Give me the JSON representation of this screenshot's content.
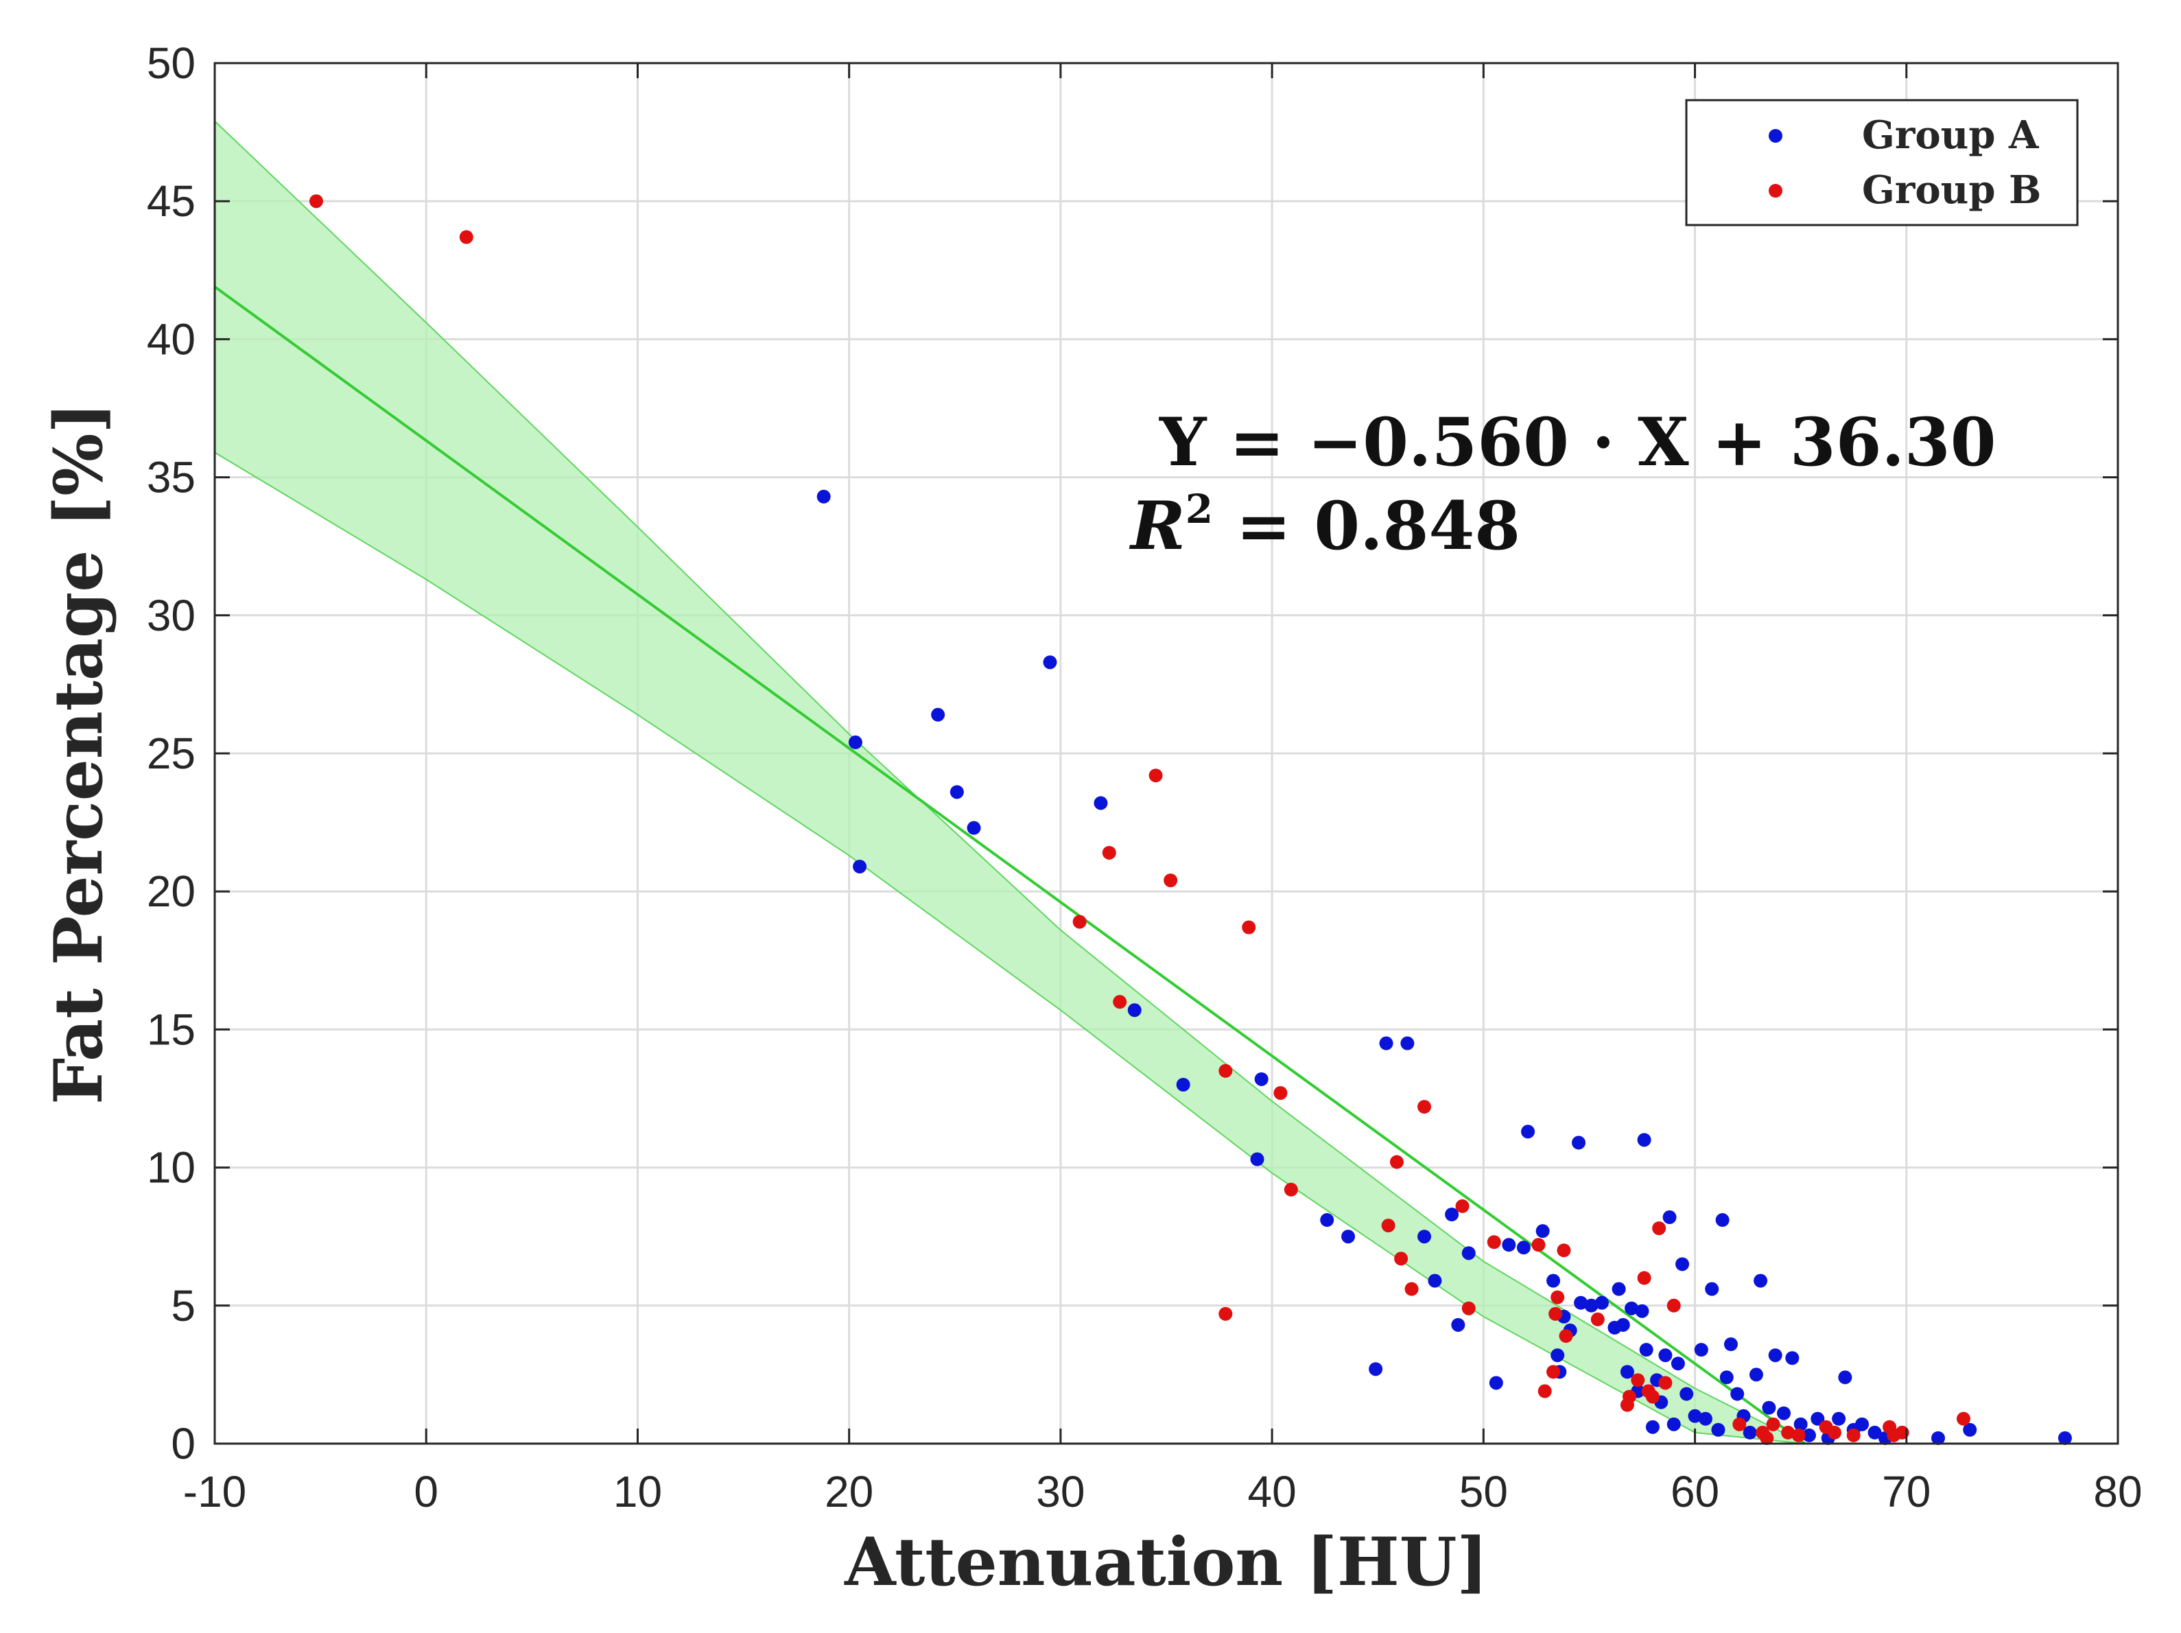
{
  "chart_data": {
    "type": "scatter",
    "title": "",
    "xlabel": "Attenuation [HU]",
    "ylabel": "Fat Percentage [%]",
    "xlim": [
      -10,
      80
    ],
    "ylim": [
      0,
      50
    ],
    "x_ticks": [
      "-10",
      "0",
      "10",
      "20",
      "30",
      "40",
      "50",
      "60",
      "70",
      "80"
    ],
    "y_ticks": [
      "0",
      "5",
      "10",
      "15",
      "20",
      "25",
      "30",
      "35",
      "40",
      "45",
      "50"
    ],
    "grid": true,
    "legend_position": "top-right",
    "colors": {
      "group_a": "#0a14d8",
      "group_b": "#e01010",
      "fit": "#33cc33",
      "band": "#b4f0b4"
    },
    "equation": {
      "line1": "Y = −0.560 · X + 36.30",
      "r2_prefix": "R",
      "r2_sup": "2",
      "r2_rest": " = 0.848"
    },
    "fit": {
      "slope": -0.56,
      "intercept": 36.3,
      "x_range": [
        -10,
        65.2
      ]
    },
    "band": {
      "upper": [
        [
          -10,
          47.9
        ],
        [
          0,
          40.6
        ],
        [
          10,
          33.2
        ],
        [
          20,
          25.7
        ],
        [
          30,
          18.6
        ],
        [
          40,
          12.4
        ],
        [
          50,
          6.6
        ],
        [
          60,
          2.0
        ],
        [
          65.2,
          0
        ]
      ],
      "lower": [
        [
          -10,
          35.9
        ],
        [
          0,
          31.3
        ],
        [
          10,
          26.4
        ],
        [
          20,
          21.3
        ],
        [
          30,
          15.7
        ],
        [
          40,
          9.8
        ],
        [
          50,
          4.6
        ],
        [
          60,
          0.4
        ],
        [
          65.2,
          0
        ]
      ]
    },
    "series": [
      {
        "name": "Group A",
        "points": [
          [
            18.8,
            34.3
          ],
          [
            20.3,
            25.4
          ],
          [
            20.5,
            20.9
          ],
          [
            24.2,
            26.4
          ],
          [
            25.1,
            23.6
          ],
          [
            25.9,
            22.3
          ],
          [
            29.5,
            28.3
          ],
          [
            31.9,
            23.2
          ],
          [
            33.5,
            15.7
          ],
          [
            35.8,
            13.0
          ],
          [
            39.3,
            10.3
          ],
          [
            39.5,
            13.2
          ],
          [
            42.6,
            8.1
          ],
          [
            43.6,
            7.5
          ],
          [
            44.9,
            2.7
          ],
          [
            45.4,
            14.5
          ],
          [
            46.4,
            14.5
          ],
          [
            47.2,
            7.5
          ],
          [
            47.7,
            5.9
          ],
          [
            48.5,
            8.3
          ],
          [
            48.8,
            4.3
          ],
          [
            49.3,
            6.9
          ],
          [
            50.6,
            2.2
          ],
          [
            51.2,
            7.2
          ],
          [
            51.9,
            7.1
          ],
          [
            52.1,
            11.3
          ],
          [
            52.8,
            7.7
          ],
          [
            53.3,
            5.9
          ],
          [
            53.5,
            3.2
          ],
          [
            53.6,
            2.6
          ],
          [
            53.8,
            4.6
          ],
          [
            54.1,
            4.1
          ],
          [
            54.5,
            10.9
          ],
          [
            54.6,
            5.1
          ],
          [
            55.1,
            5.0
          ],
          [
            55.6,
            5.1
          ],
          [
            56.2,
            4.2
          ],
          [
            56.4,
            5.6
          ],
          [
            56.6,
            4.3
          ],
          [
            56.8,
            2.6
          ],
          [
            57.0,
            4.9
          ],
          [
            57.3,
            1.9
          ],
          [
            57.5,
            4.8
          ],
          [
            57.6,
            11.0
          ],
          [
            57.7,
            3.4
          ],
          [
            58.0,
            0.6
          ],
          [
            58.2,
            2.3
          ],
          [
            58.4,
            1.5
          ],
          [
            58.6,
            3.2
          ],
          [
            58.8,
            8.2
          ],
          [
            59.0,
            0.7
          ],
          [
            59.2,
            2.9
          ],
          [
            59.4,
            6.5
          ],
          [
            59.6,
            1.8
          ],
          [
            60.0,
            1.0
          ],
          [
            60.3,
            3.4
          ],
          [
            60.5,
            0.9
          ],
          [
            60.8,
            5.6
          ],
          [
            61.1,
            0.5
          ],
          [
            61.3,
            8.1
          ],
          [
            61.5,
            2.4
          ],
          [
            61.7,
            3.6
          ],
          [
            62.0,
            1.8
          ],
          [
            62.3,
            1.0
          ],
          [
            62.6,
            0.4
          ],
          [
            62.9,
            2.5
          ],
          [
            63.1,
            5.9
          ],
          [
            63.5,
            1.3
          ],
          [
            63.8,
            3.2
          ],
          [
            64.2,
            1.1
          ],
          [
            64.6,
            3.1
          ],
          [
            65.0,
            0.7
          ],
          [
            65.4,
            0.3
          ],
          [
            65.8,
            0.9
          ],
          [
            66.3,
            0.2
          ],
          [
            66.8,
            0.9
          ],
          [
            67.1,
            2.4
          ],
          [
            67.5,
            0.5
          ],
          [
            67.9,
            0.7
          ],
          [
            68.5,
            0.4
          ],
          [
            69.0,
            0.2
          ],
          [
            71.5,
            0.2
          ],
          [
            73.0,
            0.5
          ],
          [
            77.5,
            0.2
          ]
        ]
      },
      {
        "name": "Group B",
        "points": [
          [
            -5.2,
            45.0
          ],
          [
            1.9,
            43.7
          ],
          [
            30.9,
            18.9
          ],
          [
            32.3,
            21.4
          ],
          [
            32.8,
            16.0
          ],
          [
            34.5,
            24.2
          ],
          [
            35.2,
            20.4
          ],
          [
            37.8,
            13.5
          ],
          [
            37.8,
            4.7
          ],
          [
            38.9,
            18.7
          ],
          [
            40.4,
            12.7
          ],
          [
            40.9,
            9.2
          ],
          [
            45.5,
            7.9
          ],
          [
            45.9,
            10.2
          ],
          [
            46.1,
            6.7
          ],
          [
            46.6,
            5.6
          ],
          [
            47.2,
            12.2
          ],
          [
            49.0,
            8.6
          ],
          [
            49.3,
            4.9
          ],
          [
            50.5,
            7.3
          ],
          [
            52.6,
            7.2
          ],
          [
            52.9,
            1.9
          ],
          [
            53.3,
            2.6
          ],
          [
            53.4,
            4.7
          ],
          [
            53.5,
            5.3
          ],
          [
            53.8,
            7.0
          ],
          [
            53.9,
            3.9
          ],
          [
            55.4,
            4.5
          ],
          [
            56.8,
            1.4
          ],
          [
            56.9,
            1.7
          ],
          [
            57.3,
            2.3
          ],
          [
            57.6,
            6.0
          ],
          [
            57.8,
            1.9
          ],
          [
            58.0,
            1.7
          ],
          [
            58.3,
            7.8
          ],
          [
            58.6,
            2.2
          ],
          [
            59.0,
            5.0
          ],
          [
            62.1,
            0.7
          ],
          [
            63.2,
            0.4
          ],
          [
            63.4,
            0.2
          ],
          [
            63.7,
            0.7
          ],
          [
            64.4,
            0.4
          ],
          [
            64.9,
            0.3
          ],
          [
            66.2,
            0.6
          ],
          [
            66.6,
            0.4
          ],
          [
            67.5,
            0.3
          ],
          [
            69.2,
            0.6
          ],
          [
            69.4,
            0.3
          ],
          [
            69.8,
            0.4
          ],
          [
            72.7,
            0.9
          ]
        ]
      }
    ]
  }
}
